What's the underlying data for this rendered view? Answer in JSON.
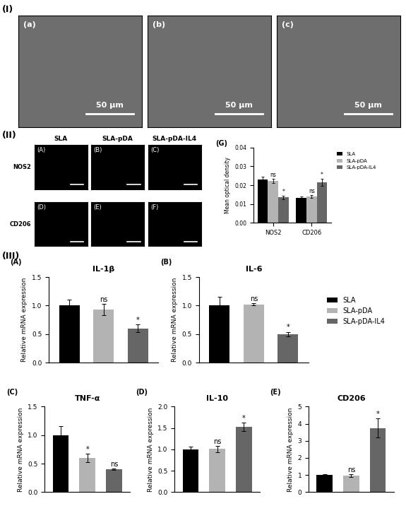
{
  "figure": {
    "section_labels": [
      "(I)",
      "(II)",
      "(III)"
    ],
    "sem_panels": [
      "(a)",
      "(b)",
      "(c)"
    ],
    "sem_scale_bar": "50 μm",
    "fluorescence": {
      "columns": [
        "SLA",
        "SLA-pDA",
        "SLA-pDA-IL4"
      ],
      "rows": [
        "NOS2",
        "CD206"
      ],
      "panels": [
        [
          "(A)",
          "(B)",
          "(C)"
        ],
        [
          "(D)",
          "(E)",
          "(F)"
        ]
      ]
    },
    "mrna_legend": [
      {
        "name": "SLA",
        "color": "#000000"
      },
      {
        "name": "SLA-pDA",
        "color": "#b3b3b3"
      },
      {
        "name": "SLA-pDA-IL4",
        "color": "#666666"
      }
    ]
  },
  "chart_data": [
    {
      "type": "grouped_bar",
      "panel": "(G)",
      "ylabel": "Mean optical density",
      "categories": [
        "NOS2",
        "CD206"
      ],
      "legend": "upper left",
      "ylim": [
        0,
        0.04
      ],
      "yticks": [
        {
          "value": 0,
          "label": "0.00"
        },
        {
          "value": 0.01,
          "label": "0.01"
        },
        {
          "value": 0.02,
          "label": "0.02"
        },
        {
          "value": 0.03,
          "label": "0.03"
        },
        {
          "value": 0.04,
          "label": "0.04"
        }
      ],
      "series": [
        {
          "name": "SLA",
          "color": "#000000",
          "values": [
            0.0232,
            0.0132
          ],
          "errors": [
            0.0012,
            0.0008
          ],
          "annotations": [
            null,
            null
          ]
        },
        {
          "name": "SLA-pDA",
          "color": "#b3b3b3",
          "values": [
            0.0222,
            0.014
          ],
          "errors": [
            0.0012,
            0.0009
          ],
          "annotations": [
            "ns",
            "ns"
          ]
        },
        {
          "name": "SLA-pDA-IL4",
          "color": "#666666",
          "values": [
            0.0135,
            0.0215
          ],
          "errors": [
            0.0009,
            0.0018
          ],
          "annotations": [
            "*",
            "*"
          ]
        }
      ]
    },
    {
      "type": "bar",
      "panel": "(A)",
      "title": "IL-1β",
      "ylabel": "Relative mRNA expression",
      "categories": [
        null,
        null,
        null
      ],
      "tick_labels": "y",
      "values": [
        1.0,
        0.93,
        0.6
      ],
      "errors": [
        0.1,
        0.1,
        0.07
      ],
      "colors": [
        "#000000",
        "#b3b3b3",
        "#666666"
      ],
      "annotations": [
        null,
        "ns",
        "*"
      ],
      "ylim": [
        0,
        1.5
      ],
      "yticks": [
        {
          "value": 0,
          "label": "0.0"
        },
        {
          "value": 0.5,
          "label": "0.5"
        },
        {
          "value": 1.0,
          "label": "1.0"
        },
        {
          "value": 1.5,
          "label": "1.5"
        }
      ]
    },
    {
      "type": "bar",
      "panel": "(B)",
      "title": "IL-6",
      "ylabel": "Relative mRNA expression",
      "categories": [
        null,
        null,
        null
      ],
      "tick_labels": "y",
      "values": [
        1.0,
        1.02,
        0.5
      ],
      "errors": [
        0.15,
        0.02,
        0.04
      ],
      "colors": [
        "#000000",
        "#b3b3b3",
        "#666666"
      ],
      "annotations": [
        null,
        "ns",
        "*"
      ],
      "ylim": [
        0,
        1.5
      ],
      "yticks": [
        {
          "value": 0,
          "label": "0.0"
        },
        {
          "value": 0.5,
          "label": "0.5"
        },
        {
          "value": 1.0,
          "label": "1.0"
        },
        {
          "value": 1.5,
          "label": "1.5"
        }
      ]
    },
    {
      "type": "bar",
      "panel": "(C)",
      "title": "TNF-α",
      "ylabel": "Relative mRNA expression",
      "categories": [
        null,
        null,
        null
      ],
      "tick_labels": "y",
      "values": [
        1.0,
        0.6,
        0.4
      ],
      "errors": [
        0.16,
        0.07,
        0.015
      ],
      "colors": [
        "#000000",
        "#b3b3b3",
        "#666666"
      ],
      "annotations": [
        null,
        "*",
        "ns"
      ],
      "ylim": [
        0,
        1.5
      ],
      "yticks": [
        {
          "value": 0,
          "label": "0.0"
        },
        {
          "value": 0.5,
          "label": "0.5"
        },
        {
          "value": 1.0,
          "label": "1.0"
        },
        {
          "value": 1.5,
          "label": "1.5"
        }
      ]
    },
    {
      "type": "bar",
      "panel": "(D)",
      "title": "IL-10",
      "ylabel": "Relative mRNA expression",
      "categories": [
        null,
        null,
        null
      ],
      "tick_labels": "y",
      "values": [
        1.0,
        1.01,
        1.52
      ],
      "errors": [
        0.06,
        0.07,
        0.1
      ],
      "colors": [
        "#000000",
        "#b3b3b3",
        "#666666"
      ],
      "annotations": [
        null,
        "ns",
        "*"
      ],
      "ylim": [
        0,
        2.0
      ],
      "yticks": [
        {
          "value": 0,
          "label": "0.0"
        },
        {
          "value": 0.5,
          "label": "0.5"
        },
        {
          "value": 1.0,
          "label": "1.0"
        },
        {
          "value": 1.5,
          "label": "1.5"
        },
        {
          "value": 2.0,
          "label": "2.0"
        }
      ]
    },
    {
      "type": "bar",
      "panel": "(E)",
      "title": "CD206",
      "ylabel": "Relative mRNA expression",
      "categories": [
        null,
        null,
        null
      ],
      "tick_labels": "y",
      "values": [
        1.0,
        0.97,
        3.75
      ],
      "errors": [
        0.06,
        0.08,
        0.55
      ],
      "colors": [
        "#000000",
        "#b3b3b3",
        "#666666"
      ],
      "annotations": [
        null,
        "ns",
        "*"
      ],
      "ylim": [
        0,
        5
      ],
      "yticks": [
        0,
        1,
        2,
        3,
        4,
        5
      ]
    }
  ]
}
